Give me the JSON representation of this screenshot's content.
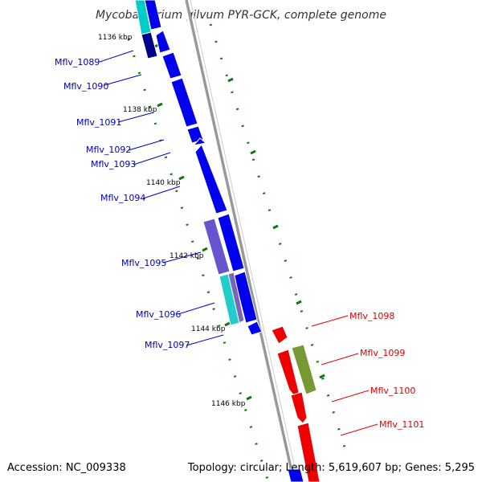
{
  "title": "Mycobacterium gilvum PYR-GCK, complete genome",
  "footer": {
    "accession": "Accession: NC_009338",
    "topology": "Topology: circular; Length: 5,619,607 bp; Genes: 5,295"
  },
  "colors": {
    "reverse_strand": "#0000ee",
    "forward_strand": "#ee0000",
    "backbone": "#888888",
    "ticks": "#117711"
  },
  "kbp_labels": [
    "1136 kbp",
    "1138 kbp",
    "1140 kbp",
    "1142 kbp",
    "1144 kbp",
    "1146 kbp"
  ],
  "genes_left": [
    "Mflv_1089",
    "Mflv_1090",
    "Mflv_1091",
    "Mflv_1092",
    "Mflv_1093",
    "Mflv_1094",
    "Mflv_1095",
    "Mflv_1096",
    "Mflv_1097"
  ],
  "genes_right": [
    "Mflv_1098",
    "Mflv_1099",
    "Mflv_1100",
    "Mflv_1101"
  ]
}
